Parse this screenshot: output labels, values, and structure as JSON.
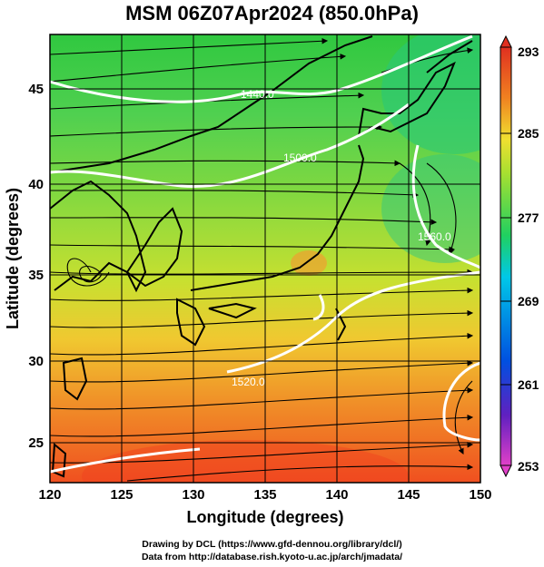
{
  "title": "MSM 06Z07Apr2024 (850.0hPa)",
  "x_axis": {
    "label": "Longitude (degrees)",
    "range": [
      120,
      150
    ],
    "ticks": [
      120,
      125,
      130,
      135,
      140,
      145,
      150
    ]
  },
  "y_axis": {
    "label": "Latitude  (degrees)",
    "range": [
      22.4,
      47.6
    ],
    "ticks": [
      25,
      30,
      35,
      40,
      45
    ]
  },
  "colorbar": {
    "min": 253,
    "max": 293,
    "tick_labels": [
      "293",
      "285",
      "277",
      "269",
      "261",
      "253"
    ],
    "colors": [
      "#e040c8",
      "#6020c0",
      "#0050e0",
      "#00c8e8",
      "#20d060",
      "#a8e030",
      "#f0e030",
      "#f08020",
      "#e03020"
    ]
  },
  "contours": [
    {
      "label": "1440.0"
    },
    {
      "label": "1500.0"
    },
    {
      "label": "1560.0"
    },
    {
      "label": "1520.0"
    }
  ],
  "credits": {
    "line1": "Drawing by DCL (https://www.gfd-dennou.org/library/dcl/)",
    "line2": "Data from http://database.rish.kyoto-u.ac.jp/arch/jmadata/"
  }
}
